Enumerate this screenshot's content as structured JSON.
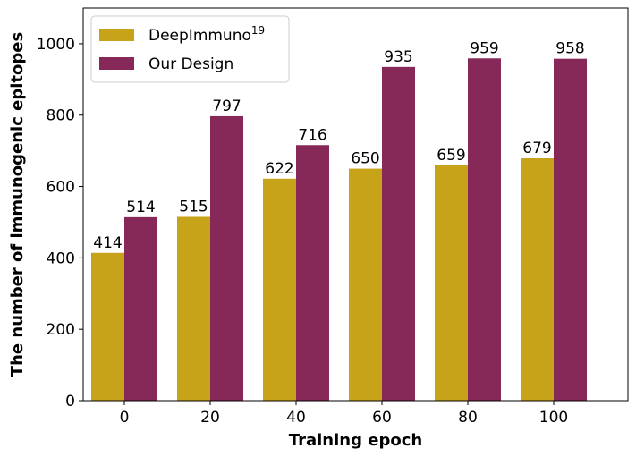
{
  "chart_data": {
    "type": "bar",
    "categories": [
      "0",
      "20",
      "40",
      "60",
      "80",
      "100"
    ],
    "series": [
      {
        "name": "DeepImmuno",
        "name_sup": "19",
        "values": [
          414,
          515,
          622,
          650,
          659,
          679
        ],
        "color": "#c7a31a"
      },
      {
        "name": "Our Design",
        "values": [
          514,
          797,
          716,
          935,
          959,
          958
        ],
        "color": "#862858"
      }
    ],
    "xlabel": "Training epoch",
    "ylabel": "The number of immunogenic epitopes",
    "ylim": [
      0,
      1100
    ],
    "yticks": [
      0,
      200,
      400,
      600,
      800,
      1000
    ],
    "grid": false,
    "legend_position": "top-left",
    "data_labels": true
  }
}
